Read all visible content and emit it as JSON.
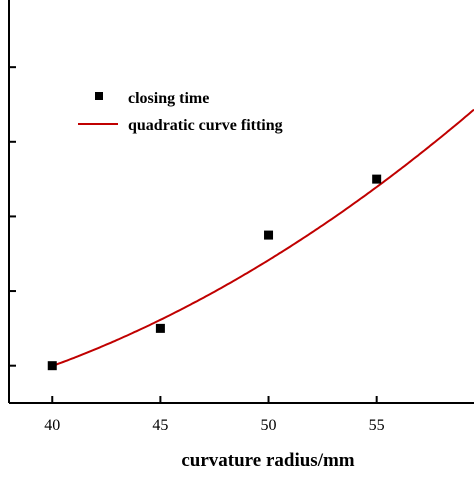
{
  "chart_data": {
    "type": "scatter",
    "title": "",
    "xlabel": "curvature radius/mm",
    "ylabel": "",
    "x_ticks": [
      "40",
      "45",
      "50",
      "55"
    ],
    "xlim": [
      38.0,
      59.5
    ],
    "ylim": [
      0.0,
      5.4
    ],
    "y_tick_values": [
      0.5,
      1.5,
      2.5,
      3.5,
      4.5,
      5.5
    ],
    "grid": false,
    "legend_position": "top-left",
    "series": [
      {
        "name": "closing time",
        "kind": "scatter",
        "marker": "square",
        "color": "#000000",
        "x": [
          40,
          45,
          50,
          55
        ],
        "y": [
          0.5,
          1.0,
          2.25,
          3.0
        ]
      },
      {
        "name": "quadratic curve fitting",
        "kind": "line",
        "color": "#c00000",
        "coefficients": [
          0.003616,
          -0.1836,
          2.054
        ],
        "x_range": [
          40,
          59.5
        ]
      }
    ]
  }
}
